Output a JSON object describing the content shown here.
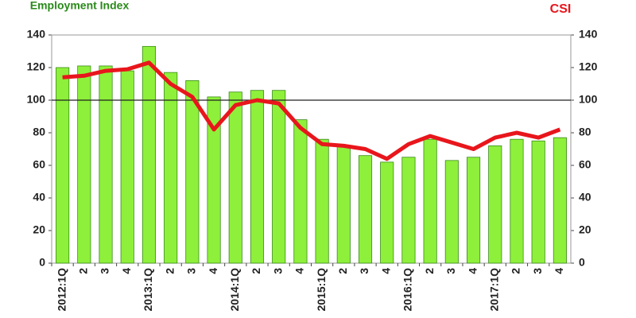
{
  "chart_data": {
    "type": "bar-line",
    "left_title": "Employment Index",
    "right_title": "CSI",
    "categories": [
      "2012:1Q",
      "2",
      "3",
      "4",
      "2013:1Q",
      "2",
      "3",
      "4",
      "2014:1Q",
      "2",
      "3",
      "4",
      "2015:1Q",
      "2",
      "3",
      "4",
      "2016:1Q",
      "2",
      "3",
      "4",
      "2017:1Q",
      "2",
      "3",
      "4"
    ],
    "series": [
      {
        "name": "Employment Index",
        "color": "#8ef03a",
        "values": [
          120,
          121,
          121,
          118,
          133,
          117,
          112,
          102,
          105,
          106,
          106,
          88,
          76,
          72,
          66,
          62,
          65,
          76,
          63,
          65,
          72,
          76,
          75,
          77
        ]
      },
      {
        "name": "CSI",
        "color": "#e8161c",
        "axis": "y2",
        "values": [
          114,
          115,
          118,
          119,
          123,
          110,
          102,
          82,
          97,
          100,
          98,
          83,
          73,
          72,
          70,
          64,
          73,
          78,
          74,
          70,
          77,
          80,
          77,
          82
        ]
      }
    ],
    "ylim": [
      0,
      140
    ],
    "yticks": [
      0,
      20,
      40,
      60,
      80,
      100,
      120,
      140
    ],
    "y2lim": [
      0,
      140
    ],
    "y2ticks": [
      0,
      20,
      40,
      60,
      80,
      100,
      120,
      140
    ],
    "reference_line": 100
  }
}
